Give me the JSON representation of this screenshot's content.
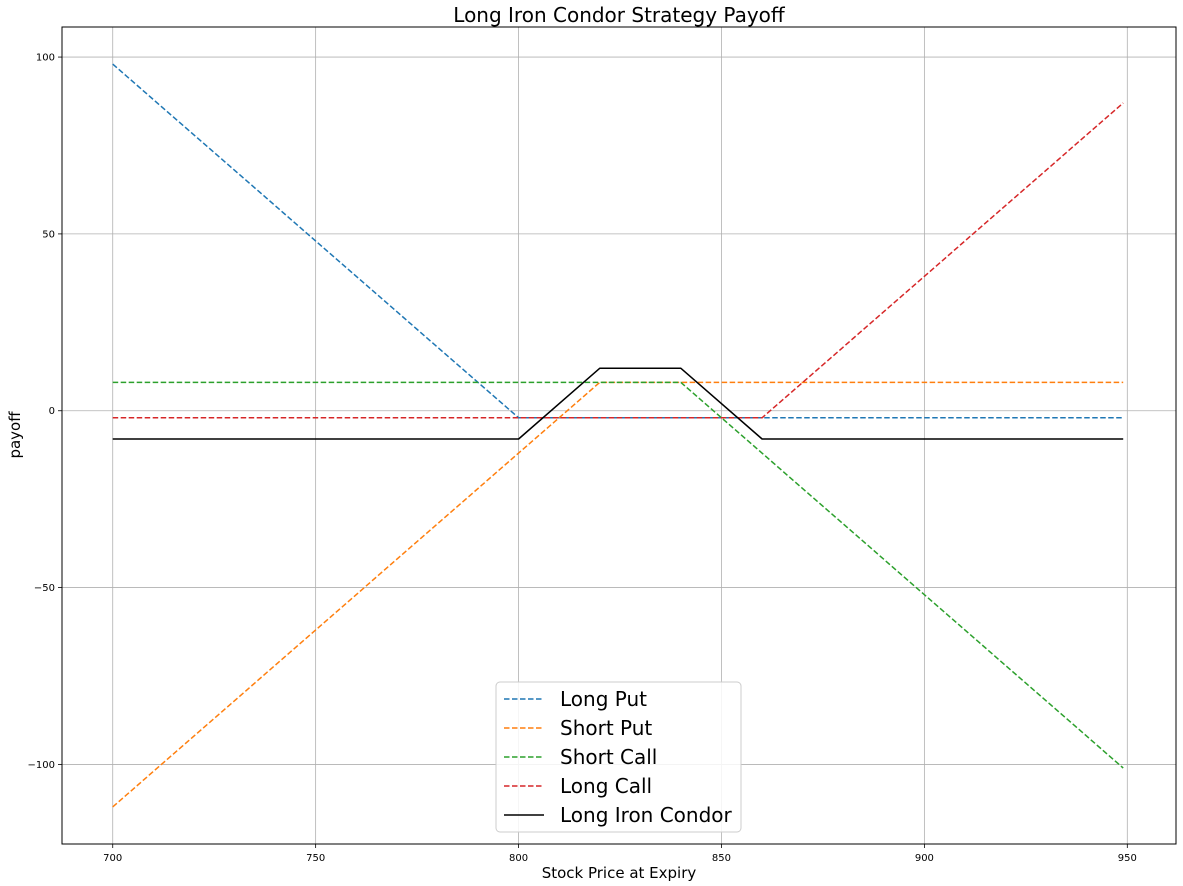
{
  "chart_data": {
    "type": "line",
    "title": "Long Iron Condor Strategy Payoff",
    "xlabel": "Stock Price at Expiry",
    "ylabel": "payoff",
    "xlim": [
      687.5,
      962
    ],
    "ylim": [
      -122.5,
      108.5
    ],
    "xticks": [
      700,
      750,
      800,
      850,
      900,
      950
    ],
    "yticks": [
      100,
      50,
      0,
      -50,
      -100
    ],
    "ytick_labels": [
      "100",
      "50",
      "0",
      "−50",
      "−100"
    ],
    "grid": true,
    "legend_position": "lower center",
    "series": [
      {
        "name": "Long Put",
        "color": "#1f77b4",
        "style": "dashed",
        "x": [
          700,
          800,
          949
        ],
        "y": [
          98,
          -2,
          -2
        ]
      },
      {
        "name": "Short Put",
        "color": "#ff7f0e",
        "style": "dashed",
        "x": [
          700,
          820,
          949
        ],
        "y": [
          -112,
          8,
          8
        ]
      },
      {
        "name": "Short Call",
        "color": "#2ca02c",
        "style": "dashed",
        "x": [
          700,
          840,
          949
        ],
        "y": [
          8,
          8,
          -101
        ]
      },
      {
        "name": "Long Call",
        "color": "#d62728",
        "style": "dashed",
        "x": [
          700,
          860,
          949
        ],
        "y": [
          -2,
          -2,
          87
        ]
      },
      {
        "name": "Long Iron Condor",
        "color": "#000000",
        "style": "solid",
        "x": [
          700,
          800,
          820,
          840,
          860,
          949
        ],
        "y": [
          -8,
          -8,
          12,
          12,
          -8,
          -8
        ]
      }
    ]
  }
}
